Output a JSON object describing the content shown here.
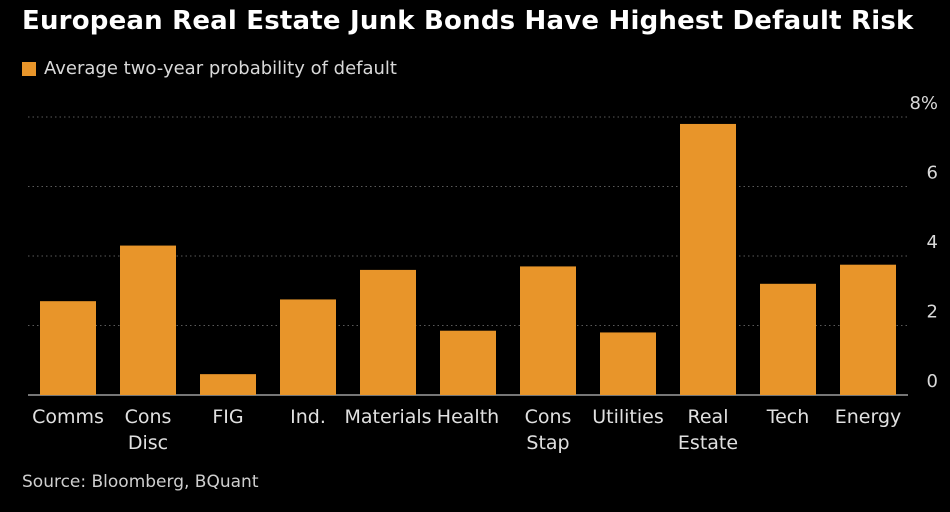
{
  "chart_data": {
    "type": "bar",
    "title": "European Real Estate Junk Bonds Have Highest Default Risk",
    "legend": {
      "label": "Average two-year probability of default",
      "placement": "top-left"
    },
    "categories": [
      [
        "Comms"
      ],
      [
        "Cons",
        "Disc"
      ],
      [
        "FIG"
      ],
      [
        "Ind."
      ],
      [
        "Materials"
      ],
      [
        "Health"
      ],
      [
        "Cons",
        "Stap"
      ],
      [
        "Utilities"
      ],
      [
        "Real",
        "Estate"
      ],
      [
        "Tech"
      ],
      [
        "Energy"
      ]
    ],
    "series": [
      {
        "values": [
          2.7,
          4.3,
          0.6,
          2.75,
          3.6,
          1.85,
          3.7,
          1.8,
          7.8,
          3.2,
          3.75
        ]
      }
    ],
    "y_ticks": [
      "0",
      "2",
      "4",
      "6",
      "8%"
    ],
    "ylim": [
      0,
      8
    ],
    "grid": "horizontal-dotted",
    "y_axis_side": "right",
    "bar_color": "#e8952a",
    "background": "#000000"
  },
  "source": "Source: Bloomberg, BQuant"
}
